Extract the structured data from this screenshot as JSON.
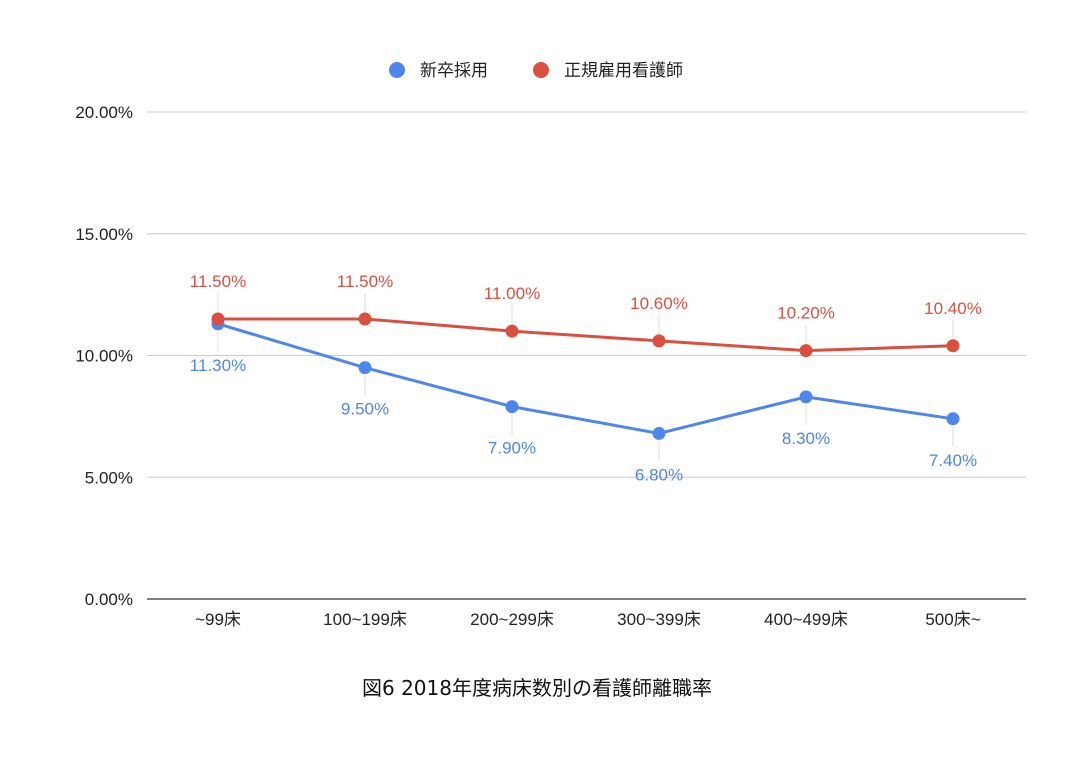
{
  "chart_data": {
    "type": "line",
    "title": "",
    "xlabel": "",
    "ylabel": "",
    "categories": [
      "~99床",
      "100~199床",
      "200~299床",
      "300~399床",
      "400~499床",
      "500床~"
    ],
    "series": [
      {
        "name": "新卒採用",
        "color": "#4F86EC",
        "values": [
          11.3,
          9.5,
          7.9,
          6.8,
          8.3,
          7.4
        ],
        "labels": [
          "11.30%",
          "9.50%",
          "7.90%",
          "6.80%",
          "8.30%",
          "7.40%"
        ],
        "label_position": "below"
      },
      {
        "name": "正規雇用看護師",
        "color": "#D9503F",
        "values": [
          11.5,
          11.5,
          11.0,
          10.6,
          10.2,
          10.4
        ],
        "labels": [
          "11.50%",
          "11.50%",
          "11.00%",
          "10.60%",
          "10.20%",
          "10.40%"
        ],
        "label_position": "above"
      }
    ],
    "ylim": [
      0,
      20
    ],
    "yticks": [
      0,
      5,
      10,
      15,
      20
    ],
    "ytick_labels": [
      "0.00%",
      "5.00%",
      "10.00%",
      "15.00%",
      "20.00%"
    ],
    "grid": true,
    "legend_position": "top-center"
  },
  "caption": "図6 2018年度病床数別の看護師離職率"
}
